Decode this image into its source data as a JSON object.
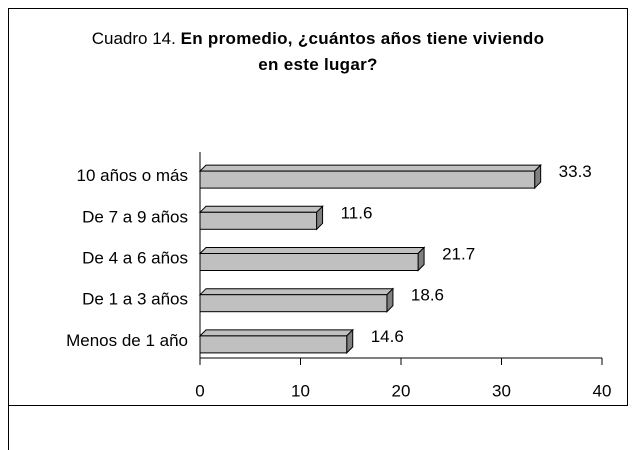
{
  "chart_data": {
    "type": "bar",
    "orientation": "horizontal",
    "title_number": "Cuadro 14.",
    "title": "En promedio, ¿cuántos años tiene viviendo en este lugar?",
    "categories": [
      "10 años o más",
      "De 7 a 9 años",
      "De 4 a 6 años",
      "De 1 a 3 años",
      "Menos de 1 año"
    ],
    "values": [
      33.3,
      11.6,
      21.7,
      18.6,
      14.6
    ],
    "color": "#c0c0c0",
    "xlim": [
      0,
      40
    ],
    "xticks": [
      0,
      10,
      20,
      30,
      40
    ],
    "grid": false
  }
}
